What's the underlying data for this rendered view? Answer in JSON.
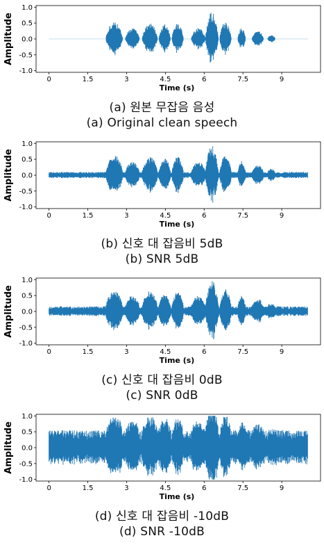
{
  "chart_data": [
    {
      "type": "line",
      "xlabel": "Time (s)",
      "ylabel": "Amplitude",
      "xticks": [
        "0",
        "1.5",
        "3",
        "4.5",
        "6",
        "7.5",
        "9"
      ],
      "yticks": [
        "1.0",
        "0.5",
        "0.0",
        "-0.5",
        "-1.0"
      ],
      "xlim": [
        -0.5,
        10.5
      ],
      "ylim": [
        -1.05,
        1.05
      ],
      "grid": false,
      "color": "#1f77b4",
      "noise_level": 0.0,
      "caption_ko": "(a) 원본 무잡음 음성",
      "caption_en": "(a) Original clean speech"
    },
    {
      "type": "line",
      "xlabel": "Time (s)",
      "ylabel": "Amplitude",
      "xticks": [
        "0",
        "1.5",
        "3",
        "4.5",
        "6",
        "7.5",
        "9"
      ],
      "yticks": [
        "1.0",
        "0.5",
        "0.0",
        "-0.5",
        "-1.0"
      ],
      "xlim": [
        -0.5,
        10.5
      ],
      "ylim": [
        -1.05,
        1.05
      ],
      "grid": false,
      "color": "#1f77b4",
      "noise_level": 0.1,
      "caption_ko": "(b) 신호 대 잡음비 5dB",
      "caption_en": "(b) SNR 5dB"
    },
    {
      "type": "line",
      "xlabel": "Time (s)",
      "ylabel": "Amplitude",
      "xticks": [
        "0",
        "1.5",
        "3",
        "4.5",
        "6",
        "7.5",
        "9"
      ],
      "yticks": [
        "1.0",
        "0.5",
        "0.0",
        "-0.5",
        "-1.0"
      ],
      "xlim": [
        -0.5,
        10.5
      ],
      "ylim": [
        -1.05,
        1.05
      ],
      "grid": false,
      "color": "#1f77b4",
      "noise_level": 0.16,
      "caption_ko": "(c) 신호 대 잡음비 0dB",
      "caption_en": "(c) SNR 0dB"
    },
    {
      "type": "line",
      "xlabel": "Time (s)",
      "ylabel": "Amplitude",
      "xticks": [
        "0",
        "1.5",
        "3",
        "4.5",
        "6",
        "7.5",
        "9"
      ],
      "yticks": [
        "1.0",
        "0.5",
        "0.0",
        "-0.5",
        "-1.0"
      ],
      "xlim": [
        -0.5,
        10.5
      ],
      "ylim": [
        -1.05,
        1.05
      ],
      "grid": false,
      "color": "#1f77b4",
      "noise_level": 0.55,
      "caption_ko": "(d) 신호 대 잡음비 -10dB",
      "caption_en": "(d) SNR -10dB"
    }
  ],
  "speech_bursts": [
    {
      "start": 2.2,
      "end": 2.85,
      "amp": 0.55
    },
    {
      "start": 2.95,
      "end": 3.5,
      "amp": 0.35
    },
    {
      "start": 3.6,
      "end": 4.2,
      "amp": 0.5
    },
    {
      "start": 4.25,
      "end": 4.7,
      "amp": 0.45
    },
    {
      "start": 4.75,
      "end": 5.2,
      "amp": 0.5
    },
    {
      "start": 5.5,
      "end": 6.05,
      "amp": 0.35
    },
    {
      "start": 6.05,
      "end": 6.55,
      "amp": 0.85
    },
    {
      "start": 6.6,
      "end": 7.05,
      "amp": 0.55
    },
    {
      "start": 7.3,
      "end": 7.6,
      "amp": 0.35
    },
    {
      "start": 7.85,
      "end": 8.3,
      "amp": 0.25
    },
    {
      "start": 8.45,
      "end": 8.75,
      "amp": 0.12
    }
  ],
  "signal_end": 10.0
}
